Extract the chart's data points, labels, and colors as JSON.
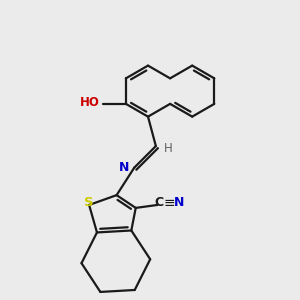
{
  "bg_color": "#ebebeb",
  "bond_color": "#1a1a1a",
  "atom_colors": {
    "S": "#cccc00",
    "N": "#0000cc",
    "O": "#cc0000",
    "C": "#1a1a1a",
    "H": "#606060"
  },
  "figsize": [
    3.0,
    3.0
  ],
  "dpi": 100,
  "bond_lw": 1.6
}
